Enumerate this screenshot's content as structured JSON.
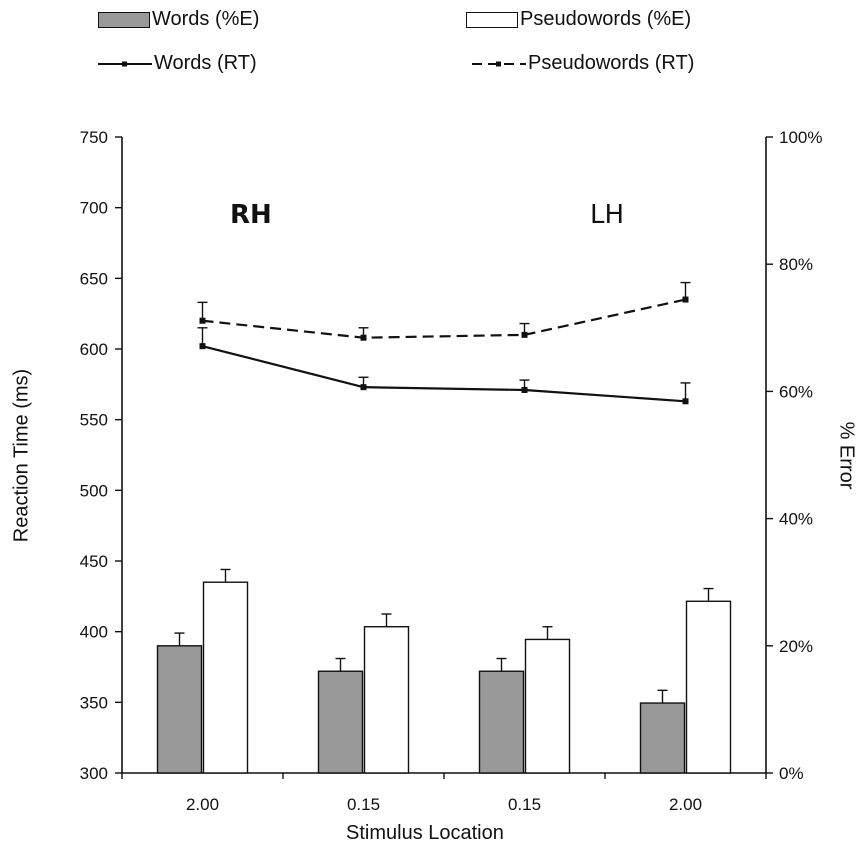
{
  "legend": {
    "words_err": "Words (%E)",
    "pseudo_err": "Pseudowords (%E)",
    "words_rt": "Words (RT)",
    "pseudo_rt": "Pseudowords (RT)"
  },
  "annotations": {
    "left": "RH",
    "right": "LH"
  },
  "colors": {
    "words_bar": "#999999",
    "pseudo_bar": "#ffffff",
    "line": "#111111"
  },
  "chart_data": {
    "type": "bar",
    "categories": [
      "2.00",
      "0.15",
      "0.15",
      "2.00"
    ],
    "xlabel": "Stimulus Location",
    "ylabel": "Reaction Time (ms)",
    "y2label": "% Error",
    "ylim": [
      300,
      750
    ],
    "y_ticks": [
      300,
      350,
      400,
      450,
      500,
      550,
      600,
      650,
      700,
      750
    ],
    "y2lim": [
      0,
      100
    ],
    "y2_ticks": [
      "0%",
      "20%",
      "40%",
      "60%",
      "80%",
      "100%"
    ],
    "bar_series": [
      {
        "name": "Words (%E)",
        "values": [
          20,
          16,
          16,
          11
        ],
        "errors": [
          2,
          2,
          2,
          2
        ]
      },
      {
        "name": "Pseudowords (%E)",
        "values": [
          30,
          23,
          21,
          27
        ],
        "errors": [
          2,
          2,
          2,
          2
        ]
      }
    ],
    "line_series": [
      {
        "name": "Words (RT)",
        "values": [
          602,
          573,
          571,
          563
        ],
        "errors": [
          13,
          7,
          7,
          13
        ],
        "style": "solid"
      },
      {
        "name": "Pseudowords (RT)",
        "values": [
          620,
          608,
          610,
          635
        ],
        "errors": [
          13,
          7,
          8,
          12
        ],
        "style": "dashed"
      }
    ]
  }
}
